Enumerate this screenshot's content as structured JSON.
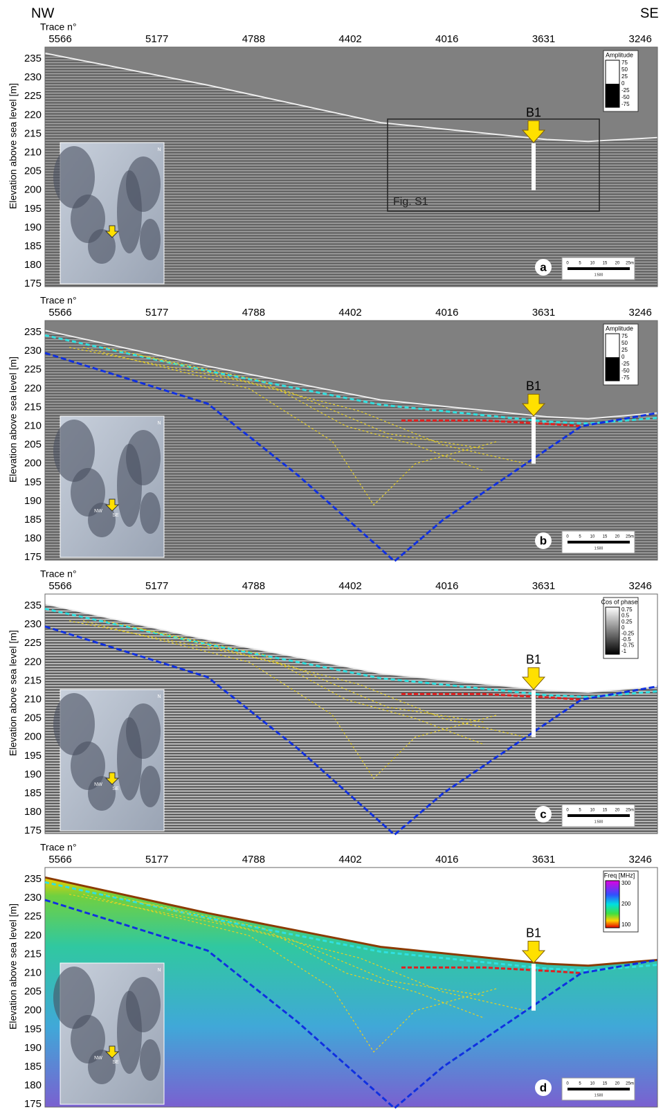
{
  "header": {
    "left": "NW",
    "right": "SE"
  },
  "panels": [
    {
      "label": "a",
      "trace_title": "Trace n°",
      "traces": [
        "5566",
        "5177",
        "4788",
        "4402",
        "4016",
        "3631",
        "3246"
      ],
      "y_label": "Elevation above sea level [m]",
      "y_ticks": [
        "235",
        "230",
        "225",
        "220",
        "215",
        "210",
        "205",
        "200",
        "195",
        "190",
        "185",
        "180",
        "175"
      ],
      "legend_title": "Amplitude",
      "legend_ticks": [
        "75",
        "50",
        "25",
        "0",
        "-25",
        "-50",
        "-75"
      ],
      "borehole": "B1",
      "box_label": "Fig. S1",
      "scale": [
        "0",
        "5",
        "10",
        "15",
        "20",
        "25m"
      ],
      "scale_ratio": "1:500",
      "map_labels": [
        "N"
      ]
    },
    {
      "label": "b",
      "trace_title": "Trace n°",
      "traces": [
        "5566",
        "5177",
        "4788",
        "4402",
        "4016",
        "3631",
        "3246"
      ],
      "y_label": "Elevation above sea level [m]",
      "y_ticks": [
        "235",
        "230",
        "225",
        "220",
        "215",
        "210",
        "205",
        "200",
        "195",
        "190",
        "185",
        "180",
        "175"
      ],
      "legend_title": "Amplitude",
      "legend_ticks": [
        "75",
        "50",
        "25",
        "0",
        "-25",
        "-50",
        "-75"
      ],
      "borehole": "B1",
      "scale": [
        "0",
        "5",
        "10",
        "15",
        "20",
        "25m"
      ],
      "scale_ratio": "1:500",
      "map_labels": [
        "N",
        "NW",
        "SE"
      ]
    },
    {
      "label": "c",
      "trace_title": "Trace n°",
      "traces": [
        "5566",
        "5177",
        "4788",
        "4402",
        "4016",
        "3631",
        "3246"
      ],
      "y_label": "Elevation above sea level [m]",
      "y_ticks": [
        "235",
        "230",
        "225",
        "220",
        "215",
        "210",
        "205",
        "200",
        "195",
        "190",
        "185",
        "180",
        "175"
      ],
      "legend_title": "Cos of phase",
      "legend_ticks": [
        "0.75",
        "0.5",
        "0.25",
        "0",
        "-0.25",
        "-0.5",
        "-0.75",
        "-1"
      ],
      "borehole": "B1",
      "scale": [
        "0",
        "5",
        "10",
        "15",
        "20",
        "25m"
      ],
      "scale_ratio": "1:500",
      "map_labels": [
        "N",
        "NW",
        "SE"
      ]
    },
    {
      "label": "d",
      "trace_title": "Trace n°",
      "traces": [
        "5566",
        "5177",
        "4788",
        "4402",
        "4016",
        "3631",
        "3246"
      ],
      "y_label": "Elevation above sea level [m]",
      "y_ticks": [
        "235",
        "230",
        "225",
        "220",
        "215",
        "210",
        "205",
        "200",
        "195",
        "190",
        "185",
        "180",
        "175"
      ],
      "legend_title": "Freq [MHz]",
      "legend_ticks": [
        "300",
        "200",
        "100"
      ],
      "borehole": "B1",
      "scale": [
        "0",
        "5",
        "10",
        "15",
        "20",
        "25m"
      ],
      "scale_ratio": "1:500",
      "map_labels": [
        "N",
        "NW",
        "SE"
      ]
    }
  ]
}
